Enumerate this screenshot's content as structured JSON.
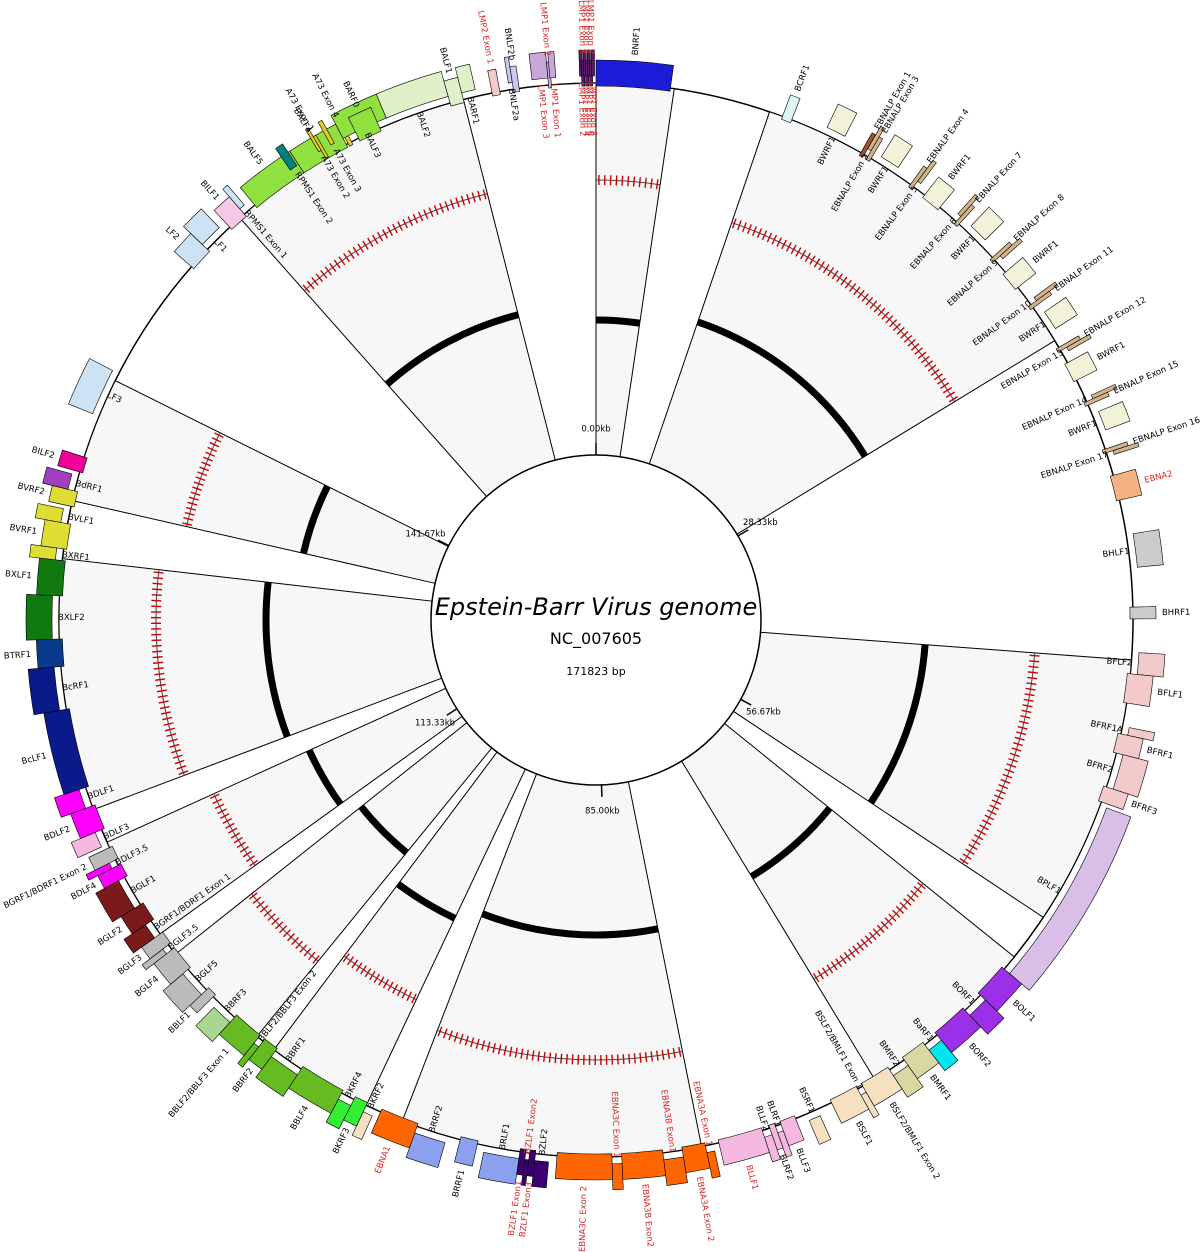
{
  "title": "Epstein-Barr Virus genome",
  "accession": "NC_007605",
  "length_label": "171823 bp",
  "genome_length": 171823,
  "scale_ticks": [
    {
      "pos": 0,
      "label": "0.00kb"
    },
    {
      "pos": 28330,
      "label": "28.33kb"
    },
    {
      "pos": 56670,
      "label": "56.67kb"
    },
    {
      "pos": 85000,
      "label": "85.00kb"
    },
    {
      "pos": 113330,
      "label": "113.33kb"
    },
    {
      "pos": 141670,
      "label": "141.67kb"
    }
  ],
  "colors": {
    "latent_label": "#d62728",
    "default_label": "#000000",
    "sector_fill": "#f7f7f7",
    "marker": "#cc0000"
  },
  "features": [
    {
      "name": "BNRF1",
      "start": 1,
      "end": 3800,
      "color": "#1c1cd8",
      "outer": 1
    },
    {
      "name": "LMP1 Exon 2",
      "start": 171000,
      "end": 171100,
      "color": "#5a1a6a",
      "outer": 1,
      "latent": true
    },
    {
      "name": "LMP1 Exon 3",
      "start": 171100,
      "end": 171200,
      "color": "#5a1a6a",
      "outer": 1,
      "latent": true
    },
    {
      "name": "LMP1 Exon 4",
      "start": 171200,
      "end": 171300,
      "color": "#5a1a6a",
      "outer": 1,
      "latent": true
    },
    {
      "name": "LMP1 Exon 5",
      "start": 171300,
      "end": 171400,
      "color": "#5a1a6a",
      "outer": 1,
      "latent": true
    },
    {
      "name": "LMP1 Exon 6",
      "start": 171400,
      "end": 171500,
      "color": "#5a1a6a",
      "outer": 1,
      "latent": true
    },
    {
      "name": "LMP1 Exon 7",
      "start": 171500,
      "end": 171600,
      "color": "#5a1a6a",
      "outer": 1,
      "latent": true
    },
    {
      "name": "LMP1 Exon 8",
      "start": 171600,
      "end": 171700,
      "color": "#5a1a6a",
      "outer": 1,
      "latent": true
    },
    {
      "name": "BCRF1",
      "start": 9700,
      "end": 10200,
      "color": "#dff6f6",
      "outer": 1
    },
    {
      "name": "BWRF1",
      "start": 12000,
      "end": 13000,
      "color": "#f2f2d8",
      "outer": 1
    },
    {
      "name": "EBNALP Exon 1",
      "start": 14100,
      "end": 14300,
      "color": "#a0522d",
      "outer": 1
    },
    {
      "name": "EBNALP Exon 2",
      "start": 14300,
      "end": 14500,
      "color": "#d2b48c",
      "outer": 1
    },
    {
      "name": "EBNALP Exon 3",
      "start": 14500,
      "end": 14700,
      "color": "#d2b48c",
      "outer": 1
    },
    {
      "name": "BWRF1",
      "start": 15100,
      "end": 16100,
      "color": "#f2f2d8",
      "outer": 1
    },
    {
      "name": "EBNALP Exon 4",
      "start": 17100,
      "end": 17300,
      "color": "#d2b48c",
      "outer": 1
    },
    {
      "name": "EBNALP Exon 5",
      "start": 17300,
      "end": 17500,
      "color": "#d2b48c",
      "outer": 1
    },
    {
      "name": "BWRF1",
      "start": 18000,
      "end": 19000,
      "color": "#f2f2d8",
      "outer": 1
    },
    {
      "name": "EBNALP Exon 6",
      "start": 19900,
      "end": 20100,
      "color": "#d2b48c",
      "outer": 1
    },
    {
      "name": "EBNALP Exon 7",
      "start": 20100,
      "end": 20300,
      "color": "#d2b48c",
      "outer": 1
    },
    {
      "name": "BWRF1",
      "start": 20800,
      "end": 21800,
      "color": "#f2f2d8",
      "outer": 1
    },
    {
      "name": "EBNALP Exon 8",
      "start": 22700,
      "end": 22900,
      "color": "#d2b48c",
      "outer": 1
    },
    {
      "name": "EBNALP Exon 9",
      "start": 22900,
      "end": 23100,
      "color": "#d2b48c",
      "outer": 1
    },
    {
      "name": "BWRF1",
      "start": 23700,
      "end": 24700,
      "color": "#f2f2d8",
      "outer": 1
    },
    {
      "name": "EBNALP Exon 10",
      "start": 25600,
      "end": 25800,
      "color": "#d2b48c",
      "outer": 1
    },
    {
      "name": "EBNALP Exon 11",
      "start": 25800,
      "end": 26000,
      "color": "#d2b48c",
      "outer": 1
    },
    {
      "name": "BWRF1",
      "start": 26500,
      "end": 27500,
      "color": "#f2f2d8",
      "outer": 1
    },
    {
      "name": "EBNALP Exon 12",
      "start": 28400,
      "end": 28600,
      "color": "#d2b48c",
      "outer": 1
    },
    {
      "name": "EBNALP Exon 13",
      "start": 28600,
      "end": 28800,
      "color": "#d2b48c",
      "outer": 1
    },
    {
      "name": "BWRF1",
      "start": 29300,
      "end": 30300,
      "color": "#f2f2d8",
      "outer": 1
    },
    {
      "name": "EBNALP Exon 14",
      "start": 31300,
      "end": 31500,
      "color": "#d2b48c",
      "outer": 1
    },
    {
      "name": "EBNALP Exon 15",
      "start": 31500,
      "end": 31700,
      "color": "#d2b48c",
      "outer": 1
    },
    {
      "name": "BWRF1",
      "start": 32200,
      "end": 33200,
      "color": "#f2f2d8",
      "outer": 1
    },
    {
      "name": "EBNALP Exon 16",
      "start": 34100,
      "end": 34300,
      "color": "#d2b48c",
      "outer": 1
    },
    {
      "name": "EBNALP Exon 17",
      "start": 34300,
      "end": 34500,
      "color": "#d2b48c",
      "outer": 1
    },
    {
      "name": "EBNA2",
      "start": 35500,
      "end": 36800,
      "color": "#f4b183",
      "outer": 1,
      "latent": true
    },
    {
      "name": "BHLF1",
      "start": 38600,
      "end": 40300,
      "color": "#cccccc",
      "outer": 1
    },
    {
      "name": "BHRF1",
      "start": 42300,
      "end": 42900,
      "color": "#cccccc",
      "outer": 1
    },
    {
      "name": "BFLF2",
      "start": 44600,
      "end": 45700,
      "color": "#f2caca",
      "outer": 1
    },
    {
      "name": "BFLF1",
      "start": 45700,
      "end": 47200,
      "color": "#f2caca",
      "outer": 1
    },
    {
      "name": "BFRF1A",
      "start": 48400,
      "end": 48800,
      "color": "#f2caca",
      "outer": 1
    },
    {
      "name": "BFRF1",
      "start": 48800,
      "end": 49800,
      "color": "#f2caca",
      "outer": 1
    },
    {
      "name": "BFRF2",
      "start": 49800,
      "end": 51600,
      "color": "#f2caca",
      "outer": 1
    },
    {
      "name": "BFRF3",
      "start": 51600,
      "end": 52400,
      "color": "#f2caca",
      "outer": 1
    },
    {
      "name": "BPLF1",
      "start": 52600,
      "end": 62300,
      "color": "#d9bfe8",
      "outer": 1
    },
    {
      "name": "BOLF1",
      "start": 62300,
      "end": 64100,
      "color": "#9b30e8",
      "outer": 1
    },
    {
      "name": "BORF1",
      "start": 64100,
      "end": 65200,
      "color": "#9b30e8",
      "outer": 1
    },
    {
      "name": "BORF2",
      "start": 65200,
      "end": 67100,
      "color": "#9b30e8",
      "outer": 1
    },
    {
      "name": "BaRF1",
      "start": 67100,
      "end": 67900,
      "color": "#00e5ee",
      "outer": 1
    },
    {
      "name": "BMRF1",
      "start": 67900,
      "end": 69200,
      "color": "#d8d8a0",
      "outer": 1
    },
    {
      "name": "BMRF2",
      "start": 69200,
      "end": 70100,
      "color": "#d8d8a0",
      "outer": 1
    },
    {
      "name": "BSLF2/BMLF1 Exon 2",
      "start": 70100,
      "end": 71700,
      "color": "#f7e0c0",
      "outer": 1
    },
    {
      "name": "BSLF2/BMLF1 Exon 1",
      "start": 71700,
      "end": 72000,
      "color": "#f7e0c0",
      "outer": 1
    },
    {
      "name": "BSLF1",
      "start": 72000,
      "end": 73500,
      "color": "#f7e0c0",
      "outer": 1
    },
    {
      "name": "BSRF1",
      "start": 74300,
      "end": 74900,
      "color": "#f7e0c0",
      "outer": 1
    },
    {
      "name": "BLLF3",
      "start": 75500,
      "end": 76300,
      "color": "#f5b8e0",
      "outer": 1
    },
    {
      "name": "BLRF1",
      "start": 76300,
      "end": 76600,
      "color": "#f5b8e0",
      "outer": 1
    },
    {
      "name": "BLRF2",
      "start": 76600,
      "end": 76900,
      "color": "#f5b8e0",
      "outer": 1
    },
    {
      "name": "BLLF2",
      "start": 76900,
      "end": 77300,
      "color": "#f5b8e0",
      "outer": 1
    },
    {
      "name": "BLLF1",
      "start": 77300,
      "end": 79600,
      "color": "#f5b8e0",
      "outer": 1,
      "latent": true
    },
    {
      "name": "EBNA3A Exon 1",
      "start": 79900,
      "end": 80300,
      "color": "#ff6600",
      "outer": 1,
      "latent": true
    },
    {
      "name": "EBNA3A Exon 2",
      "start": 80300,
      "end": 81500,
      "color": "#ff6600",
      "outer": 1,
      "latent": true
    },
    {
      "name": "EBNA3B Exon1",
      "start": 81500,
      "end": 82500,
      "color": "#ff6600",
      "outer": 1,
      "latent": true
    },
    {
      "name": "EBNA3B Exon2",
      "start": 82500,
      "end": 84600,
      "color": "#ff6600",
      "outer": 1,
      "latent": true
    },
    {
      "name": "EBNA3C Exon 1",
      "start": 84600,
      "end": 85100,
      "color": "#ff6600",
      "outer": 1,
      "latent": true
    },
    {
      "name": "EBNA3C Exon 2",
      "start": 85100,
      "end": 87900,
      "color": "#ff6600",
      "outer": 1,
      "latent": true
    },
    {
      "name": "BZLF2",
      "start": 88300,
      "end": 89000,
      "color": "#3a0070",
      "outer": 1
    },
    {
      "name": "BZLF1 Exon3",
      "start": 89000,
      "end": 89300,
      "color": "#3a0070",
      "outer": 1,
      "latent": true
    },
    {
      "name": "BZLF1 Exon2",
      "start": 89300,
      "end": 89500,
      "color": "#3a0070",
      "outer": 1,
      "latent": true
    },
    {
      "name": "BZLF1 Exon1",
      "start": 89500,
      "end": 89800,
      "color": "#3a0070",
      "outer": 1,
      "latent": true
    },
    {
      "name": "BRLF1",
      "start": 89800,
      "end": 91600,
      "color": "#8ca0f0",
      "outer": 1
    },
    {
      "name": "BRRF1",
      "start": 92000,
      "end": 92900,
      "color": "#8ca0f0",
      "outer": 1
    },
    {
      "name": "BRRF2",
      "start": 93600,
      "end": 95200,
      "color": "#8ca0f0",
      "outer": 1
    },
    {
      "name": "EBNA1",
      "start": 95200,
      "end": 97200,
      "color": "#ff6600",
      "outer": 1,
      "latent": true
    },
    {
      "name": "BKRF2",
      "start": 97500,
      "end": 98000,
      "color": "#f7e0c0",
      "outer": 1
    },
    {
      "name": "BKRF3",
      "start": 98000,
      "end": 98700,
      "color": "#33ee33",
      "outer": 1
    },
    {
      "name": "BKRF4",
      "start": 98700,
      "end": 99400,
      "color": "#33ee33",
      "outer": 1
    },
    {
      "name": "BBLF4",
      "start": 99400,
      "end": 101800,
      "color": "#66bb22",
      "outer": 1
    },
    {
      "name": "BBRF1",
      "start": 101800,
      "end": 103400,
      "color": "#66bb22",
      "outer": 1
    },
    {
      "name": "BBRF2",
      "start": 103400,
      "end": 104200,
      "color": "#66bb22",
      "outer": 1
    },
    {
      "name": "BBLF2/BBLF3 Exon 2",
      "start": 104200,
      "end": 104500,
      "color": "#66bb22",
      "outer": 1
    },
    {
      "name": "BBLF2/BBLF3 Exon 1",
      "start": 104500,
      "end": 106100,
      "color": "#66bb22",
      "outer": 1
    },
    {
      "name": "BBRF3",
      "start": 106100,
      "end": 107200,
      "color": "#a8d890",
      "outer": 1
    },
    {
      "name": "BBLF1",
      "start": 107600,
      "end": 108100,
      "color": "#bbbbbb",
      "outer": 1
    },
    {
      "name": "BGLF5",
      "start": 108100,
      "end": 109500,
      "color": "#bbbbbb",
      "outer": 1
    },
    {
      "name": "BGLF4",
      "start": 109500,
      "end": 110800,
      "color": "#bbbbbb",
      "outer": 1
    },
    {
      "name": "BGLF3.5",
      "start": 110800,
      "end": 111100,
      "color": "#bbbbbb",
      "outer": 1
    },
    {
      "name": "BGLF3",
      "start": 111100,
      "end": 111800,
      "color": "#bbbbbb",
      "outer": 1
    },
    {
      "name": "BGRF1/BDRF1 Exon 1",
      "start": 111800,
      "end": 112600,
      "color": "#7a1a1a",
      "outer": 1
    },
    {
      "name": "BGLF2",
      "start": 112600,
      "end": 113600,
      "color": "#7a1a1a",
      "outer": 1
    },
    {
      "name": "BGLF1",
      "start": 113600,
      "end": 115200,
      "color": "#7a1a1a",
      "outer": 1
    },
    {
      "name": "BDLF4",
      "start": 115200,
      "end": 115900,
      "color": "#ff00ff",
      "outer": 1
    },
    {
      "name": "BDLF3.5",
      "start": 115900,
      "end": 116200,
      "color": "#ff00ff",
      "outer": 1
    },
    {
      "name": "BGRF1/BDRF1 Exon 2",
      "start": 116200,
      "end": 116900,
      "color": "#bbbbbb",
      "outer": 1
    },
    {
      "name": "BDLF3",
      "start": 117100,
      "end": 117900,
      "color": "#f5b8e0",
      "outer": 1
    },
    {
      "name": "BDLF2",
      "start": 117900,
      "end": 119200,
      "color": "#ff00ff",
      "outer": 1
    },
    {
      "name": "BDLF1",
      "start": 119200,
      "end": 120200,
      "color": "#ff00ff",
      "outer": 1
    },
    {
      "name": "BcLF1",
      "start": 120200,
      "end": 124300,
      "color": "#0a1a8a",
      "outer": 1
    },
    {
      "name": "BcRF1",
      "start": 124300,
      "end": 126500,
      "color": "#0a1a8a",
      "outer": 1
    },
    {
      "name": "BTRF1",
      "start": 126500,
      "end": 127900,
      "color": "#0a3a8a",
      "outer": 1
    },
    {
      "name": "BXLF2",
      "start": 127900,
      "end": 130100,
      "color": "#107a10",
      "outer": 1
    },
    {
      "name": "BXLF1",
      "start": 130100,
      "end": 131900,
      "color": "#107a10",
      "outer": 1
    },
    {
      "name": "BXRF1",
      "start": 131900,
      "end": 132500,
      "color": "#dddd33",
      "outer": 1
    },
    {
      "name": "BVRF1",
      "start": 132500,
      "end": 133800,
      "color": "#dddd33",
      "outer": 1
    },
    {
      "name": "BVLF1",
      "start": 133800,
      "end": 134500,
      "color": "#dddd33",
      "outer": 1
    },
    {
      "name": "BVRF2",
      "start": 134700,
      "end": 135500,
      "color": "#dddd33",
      "outer": 1
    },
    {
      "name": "BdRF1",
      "start": 135500,
      "end": 136300,
      "color": "#a040c0",
      "outer": 1
    },
    {
      "name": "BILF2",
      "start": 136500,
      "end": 137300,
      "color": "#ee0099",
      "outer": 1
    },
    {
      "name": "LF3",
      "start": 139500,
      "end": 141900,
      "color": "#cde2f2",
      "outer": 1
    },
    {
      "name": "LF2",
      "start": 148500,
      "end": 149700,
      "color": "#cde2f2",
      "outer": 1
    },
    {
      "name": "LF1",
      "start": 149700,
      "end": 150900,
      "color": "#cde2f2",
      "outer": 1
    },
    {
      "name": "BILF1",
      "start": 151300,
      "end": 152300,
      "color": "#f5c8e8",
      "outer": 1
    },
    {
      "name": "RPMS1 Exon 1",
      "start": 152300,
      "end": 152600,
      "color": "#cde2f2",
      "outer": 1
    },
    {
      "name": "BALF5",
      "start": 153000,
      "end": 156000,
      "color": "#90e040",
      "outer": 1
    },
    {
      "name": "RPMS1 Exon 2",
      "start": 155500,
      "end": 155900,
      "color": "#008080",
      "outer": 1
    },
    {
      "name": "BALF4",
      "start": 156000,
      "end": 158600,
      "color": "#90e040",
      "outer": 1
    },
    {
      "name": "A73 Exon 2",
      "start": 157200,
      "end": 157350,
      "color": "#e0d020",
      "outer": 1
    },
    {
      "name": "A73 Exon 1",
      "start": 157350,
      "end": 157500,
      "color": "#e0d020",
      "outer": 1
    },
    {
      "name": "A73 Exon 3",
      "start": 157900,
      "end": 158100,
      "color": "#e0d020",
      "outer": 1
    },
    {
      "name": "A73 Exon 4",
      "start": 158700,
      "end": 158900,
      "color": "#e0d020",
      "outer": 1
    },
    {
      "name": "BALF3",
      "start": 158600,
      "end": 161000,
      "color": "#90e040",
      "outer": 1
    },
    {
      "name": "BARF0",
      "start": 159300,
      "end": 160500,
      "color": "#90e040",
      "outer": 1
    },
    {
      "name": "BALF2",
      "start": 161000,
      "end": 164300,
      "color": "#e0f0c8",
      "outer": 1
    },
    {
      "name": "BALF1",
      "start": 164300,
      "end": 165000,
      "color": "#e0f0c8",
      "outer": 1
    },
    {
      "name": "BARF1",
      "start": 165000,
      "end": 165700,
      "color": "#e0f0c8",
      "outer": 1
    },
    {
      "name": "LMP2 Exon 1",
      "start": 166500,
      "end": 166900,
      "color": "#f8c8c8",
      "outer": 1,
      "latent": true
    },
    {
      "name": "BNLF2a",
      "start": 167400,
      "end": 167600,
      "color": "#c8c8f0",
      "outer": 1
    },
    {
      "name": "BNLF2b",
      "start": 167600,
      "end": 167900,
      "color": "#c8c8f0",
      "outer": 1
    },
    {
      "name": "LMP1 Exon 3",
      "start": 168600,
      "end": 169400,
      "color": "#c8a8d8",
      "outer": 1,
      "latent": true
    },
    {
      "name": "LMP1 Exon 2",
      "start": 169400,
      "end": 169500,
      "color": "#c8a8d8",
      "outer": 1,
      "latent": true
    },
    {
      "name": "LMP1 Exon 1",
      "start": 169500,
      "end": 169800,
      "color": "#c8a8d8",
      "outer": 1,
      "latent": true
    }
  ]
}
